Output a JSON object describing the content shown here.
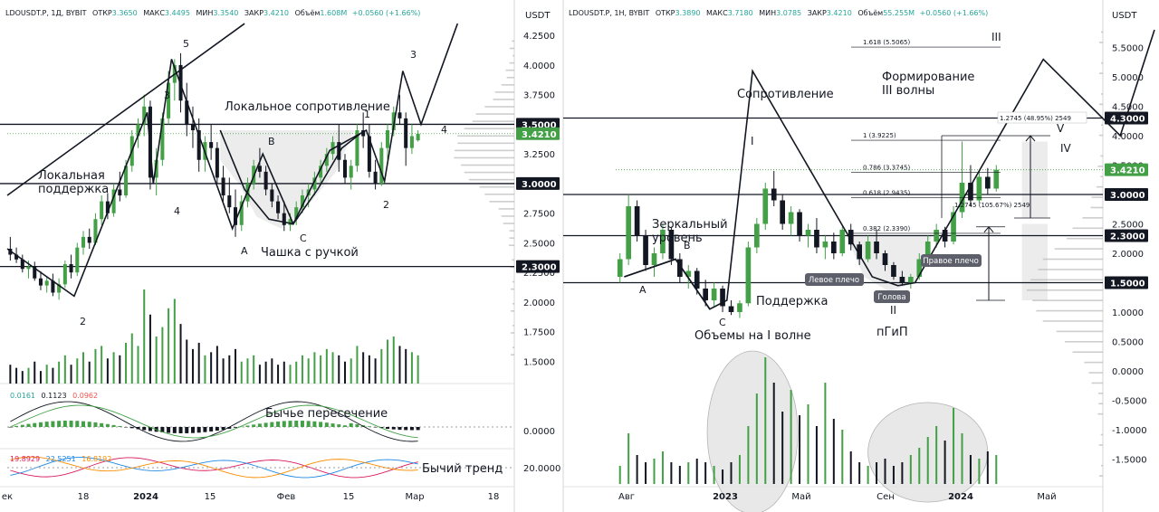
{
  "chart_data": [
    {
      "type": "candlestick",
      "symbol": "LDOUSDT.P, 1Д, BYBIT",
      "ohlc": {
        "o_label": "ОТКР",
        "o": "3.3650",
        "h_label": "МАКС",
        "h": "3.4495",
        "l_label": "МИН",
        "l": "3.3540",
        "c_label": "ЗАКР",
        "c": "3.4210",
        "vol_label": "Объём",
        "vol": "1.608M",
        "change": "+0.0560 (+1.66%)"
      },
      "currency": "USDT",
      "price_ticks": [
        "4.2500",
        "4.0000",
        "3.7500",
        "3.2500",
        "2.7500",
        "2.5000",
        "2.2500",
        "2.0000",
        "1.7500",
        "1.5000"
      ],
      "price_labels": [
        {
          "label": "3.5000",
          "value": 3.5,
          "style": "dark"
        },
        {
          "label": "3.4210",
          "value": 3.421,
          "style": "green"
        },
        {
          "label": "3.0000",
          "value": 3.0,
          "style": "dark"
        },
        {
          "label": "2.3000",
          "value": 2.3,
          "style": "dark"
        }
      ],
      "ylim": [
        1.45,
        4.32
      ],
      "x_ticks": [
        "ек",
        "18",
        "2024",
        "15",
        "Фев",
        "15",
        "Мар",
        "18"
      ],
      "horizontal_levels": [
        3.5,
        3.0,
        2.3
      ],
      "candles": [
        [
          2.45,
          2.55,
          2.35,
          2.4
        ],
        [
          2.4,
          2.46,
          2.33,
          2.36
        ],
        [
          2.36,
          2.4,
          2.25,
          2.28
        ],
        [
          2.28,
          2.35,
          2.2,
          2.3
        ],
        [
          2.3,
          2.34,
          2.18,
          2.2
        ],
        [
          2.2,
          2.26,
          2.1,
          2.14
        ],
        [
          2.14,
          2.22,
          2.08,
          2.18
        ],
        [
          2.18,
          2.24,
          2.05,
          2.08
        ],
        [
          2.08,
          2.2,
          2.02,
          2.15
        ],
        [
          2.15,
          2.35,
          2.12,
          2.32
        ],
        [
          2.32,
          2.4,
          2.2,
          2.25
        ],
        [
          2.25,
          2.5,
          2.22,
          2.46
        ],
        [
          2.46,
          2.6,
          2.4,
          2.55
        ],
        [
          2.55,
          2.62,
          2.45,
          2.5
        ],
        [
          2.5,
          2.75,
          2.48,
          2.7
        ],
        [
          2.7,
          2.9,
          2.65,
          2.85
        ],
        [
          2.85,
          2.92,
          2.7,
          2.75
        ],
        [
          2.75,
          3.0,
          2.72,
          2.95
        ],
        [
          2.95,
          3.1,
          2.85,
          2.9
        ],
        [
          2.9,
          3.2,
          2.88,
          3.15
        ],
        [
          3.15,
          3.45,
          3.1,
          3.4
        ],
        [
          3.4,
          3.55,
          3.3,
          3.5
        ],
        [
          3.5,
          3.75,
          3.4,
          3.65
        ],
        [
          3.65,
          3.7,
          2.95,
          3.05
        ],
        [
          3.05,
          3.3,
          2.9,
          3.2
        ],
        [
          3.2,
          3.6,
          3.15,
          3.55
        ],
        [
          3.55,
          3.95,
          3.5,
          3.85
        ],
        [
          3.85,
          4.05,
          3.7,
          4.0
        ],
        [
          4.0,
          4.1,
          3.6,
          3.7
        ],
        [
          3.7,
          3.85,
          3.4,
          3.5
        ],
        [
          3.5,
          3.65,
          3.3,
          3.45
        ],
        [
          3.45,
          3.55,
          3.1,
          3.2
        ],
        [
          3.2,
          3.4,
          3.1,
          3.35
        ],
        [
          3.35,
          3.5,
          3.2,
          3.3
        ],
        [
          3.3,
          3.35,
          3.0,
          3.05
        ],
        [
          3.05,
          3.15,
          2.85,
          2.9
        ],
        [
          2.9,
          3.05,
          2.75,
          2.8
        ],
        [
          2.8,
          2.95,
          2.55,
          2.65
        ],
        [
          2.65,
          2.9,
          2.6,
          2.85
        ],
        [
          2.85,
          3.05,
          2.8,
          3.0
        ],
        [
          3.0,
          3.2,
          2.95,
          3.15
        ],
        [
          3.15,
          3.3,
          3.05,
          3.1
        ],
        [
          3.1,
          3.15,
          2.9,
          2.95
        ],
        [
          2.95,
          3.0,
          2.8,
          2.85
        ],
        [
          2.85,
          2.9,
          2.7,
          2.75
        ],
        [
          2.75,
          2.85,
          2.6,
          2.65
        ],
        [
          2.65,
          2.75,
          2.6,
          2.7
        ],
        [
          2.7,
          2.85,
          2.65,
          2.8
        ],
        [
          2.8,
          2.95,
          2.75,
          2.9
        ],
        [
          2.9,
          3.0,
          2.8,
          2.95
        ],
        [
          2.95,
          3.1,
          2.9,
          3.05
        ],
        [
          3.05,
          3.2,
          3.0,
          3.15
        ],
        [
          3.15,
          3.3,
          3.1,
          3.25
        ],
        [
          3.25,
          3.4,
          3.2,
          3.35
        ],
        [
          3.35,
          3.5,
          3.1,
          3.2
        ],
        [
          3.2,
          3.25,
          3.0,
          3.05
        ],
        [
          3.05,
          3.2,
          2.95,
          3.15
        ],
        [
          3.15,
          3.5,
          3.1,
          3.45
        ],
        [
          3.45,
          3.6,
          3.3,
          3.4
        ],
        [
          3.4,
          3.5,
          3.05,
          3.1
        ],
        [
          3.1,
          3.2,
          2.95,
          3.0
        ],
        [
          3.0,
          3.35,
          2.98,
          3.3
        ],
        [
          3.3,
          3.5,
          3.2,
          3.45
        ],
        [
          3.45,
          3.65,
          3.4,
          3.6
        ],
        [
          3.6,
          3.75,
          3.5,
          3.55
        ],
        [
          3.55,
          3.6,
          3.15,
          3.3
        ],
        [
          3.3,
          3.5,
          3.25,
          3.4
        ],
        [
          3.365,
          3.4495,
          3.354,
          3.421
        ]
      ],
      "volumes": [
        0.6,
        0.5,
        0.4,
        0.5,
        0.7,
        0.4,
        0.6,
        0.5,
        0.7,
        0.9,
        0.6,
        0.8,
        1.0,
        0.7,
        1.1,
        1.2,
        0.8,
        1.0,
        0.9,
        1.3,
        1.6,
        1.2,
        3.0,
        2.2,
        1.5,
        1.8,
        2.4,
        2.7,
        1.9,
        1.4,
        1.1,
        1.3,
        0.9,
        1.0,
        1.2,
        0.8,
        0.9,
        1.1,
        0.7,
        0.8,
        0.9,
        0.6,
        0.7,
        0.8,
        0.6,
        0.7,
        0.6,
        0.7,
        0.9,
        0.8,
        1.0,
        0.9,
        1.1,
        1.0,
        0.9,
        0.7,
        0.8,
        1.2,
        1.0,
        0.9,
        0.8,
        1.1,
        1.4,
        1.5,
        1.2,
        1.1,
        1.0,
        0.9
      ],
      "macd": {
        "values_label": [
          "0.0161",
          "0.1123",
          "0.0962"
        ],
        "axis_label": "0.0000",
        "annotation": "Бычье пересечение"
      },
      "dmi": {
        "values_label": [
          "19.8929",
          "22.5251",
          "16.8192"
        ],
        "axis_label": "20.0000",
        "annotation": "Бычий тренд"
      },
      "annotations": {
        "resistance": "Локальное сопротивление",
        "support_line1": "Локальная",
        "support_line2": "поддержка",
        "cup": "Чашка с ручкой",
        "A": "A",
        "B": "B",
        "C": "C",
        "w1": "1",
        "w2": "2",
        "w3": "3",
        "w4": "4",
        "w5": "5",
        "w2a": "2",
        "w3a": "3",
        "w4a": "4",
        "w1b": "1",
        "w2b": "2"
      }
    },
    {
      "type": "candlestick",
      "symbol": "LDOUSDT.P, 1Н, BYBIT",
      "ohlc": {
        "o_label": "ОТКР",
        "o": "3.3890",
        "h_label": "МАКС",
        "h": "3.7180",
        "l_label": "МИН",
        "l": "3.0785",
        "c_label": "ЗАКР",
        "c": "3.4210",
        "vol_label": "Объём",
        "vol": "55.255M",
        "change": "+0.0560 (+1.66%)"
      },
      "currency": "USDT",
      "price_ticks": [
        "5.5000",
        "5.0000",
        "4.5000",
        "4.0000",
        "3.5000",
        "2.5000",
        "2.0000",
        "1.0000",
        "0.5000",
        "0.0000",
        "-0.5000",
        "-1.0000",
        "-1.5000"
      ],
      "price_labels": [
        {
          "label": "4.3000",
          "value": 4.3,
          "style": "dark"
        },
        {
          "label": "3.4210",
          "value": 3.421,
          "style": "green"
        },
        {
          "label": "3.0000",
          "value": 3.0,
          "style": "dark"
        },
        {
          "label": "2.3000",
          "value": 2.3,
          "style": "dark"
        },
        {
          "label": "1.5000",
          "value": 1.5,
          "style": "dark"
        }
      ],
      "ylim": [
        -2.0,
        6.0
      ],
      "x_ticks": [
        "Авг",
        "2023",
        "Май",
        "Сен",
        "2024",
        "Май"
      ],
      "horizontal_levels": [
        4.3,
        3.0,
        2.3,
        1.5
      ],
      "fib_levels": [
        {
          "label": "1.618 (5.5065)",
          "value": 5.5065
        },
        {
          "label": "1 (3.9225)",
          "value": 3.9225
        },
        {
          "label": "0.786 (3.3745)",
          "value": 3.3745
        },
        {
          "label": "0.618 (2.9435)",
          "value": 2.9435
        },
        {
          "label": "0.382 (2.3390)",
          "value": 2.339
        }
      ],
      "measures": [
        "1.2745 (48.95%) 2549",
        "1.2745 (105.67%) 2549"
      ],
      "candles": [
        [
          1.6,
          2.0,
          1.5,
          1.9
        ],
        [
          1.9,
          3.0,
          1.8,
          2.8
        ],
        [
          2.8,
          2.9,
          2.2,
          2.3
        ],
        [
          2.3,
          2.4,
          1.7,
          1.8
        ],
        [
          1.8,
          2.1,
          1.6,
          2.0
        ],
        [
          2.0,
          2.5,
          1.9,
          2.4
        ],
        [
          2.4,
          2.45,
          1.8,
          1.9
        ],
        [
          1.9,
          2.0,
          1.5,
          1.6
        ],
        [
          1.6,
          1.8,
          1.4,
          1.7
        ],
        [
          1.7,
          1.75,
          1.3,
          1.4
        ],
        [
          1.4,
          1.55,
          1.1,
          1.2
        ],
        [
          1.2,
          1.5,
          1.1,
          1.4
        ],
        [
          1.4,
          1.45,
          1.0,
          1.1
        ],
        [
          1.1,
          1.2,
          0.95,
          1.0
        ],
        [
          1.0,
          1.2,
          0.9,
          1.15
        ],
        [
          1.15,
          2.2,
          1.1,
          2.1
        ],
        [
          2.1,
          2.6,
          2.0,
          2.5
        ],
        [
          2.5,
          3.2,
          2.4,
          3.1
        ],
        [
          3.1,
          3.4,
          2.8,
          2.9
        ],
        [
          2.9,
          3.0,
          2.4,
          2.5
        ],
        [
          2.5,
          2.8,
          2.3,
          2.7
        ],
        [
          2.7,
          2.75,
          2.2,
          2.3
        ],
        [
          2.3,
          2.5,
          2.1,
          2.4
        ],
        [
          2.4,
          2.6,
          2.0,
          2.1
        ],
        [
          2.1,
          2.3,
          1.9,
          2.2
        ],
        [
          2.2,
          2.35,
          1.9,
          2.0
        ],
        [
          2.0,
          2.45,
          1.95,
          2.4
        ],
        [
          2.4,
          2.5,
          2.05,
          2.15
        ],
        [
          2.15,
          2.2,
          1.8,
          1.9
        ],
        [
          1.9,
          2.3,
          1.85,
          2.2
        ],
        [
          2.2,
          2.4,
          1.9,
          2.0
        ],
        [
          2.0,
          2.05,
          1.7,
          1.8
        ],
        [
          1.8,
          1.85,
          1.55,
          1.6
        ],
        [
          1.6,
          1.7,
          1.45,
          1.5
        ],
        [
          1.5,
          1.65,
          1.4,
          1.6
        ],
        [
          1.6,
          2.0,
          1.55,
          1.9
        ],
        [
          1.9,
          2.3,
          1.85,
          2.2
        ],
        [
          2.2,
          2.5,
          2.1,
          2.4
        ],
        [
          2.4,
          2.45,
          2.1,
          2.2
        ],
        [
          2.2,
          2.8,
          2.15,
          2.7
        ],
        [
          2.7,
          3.9,
          2.6,
          3.2
        ],
        [
          3.2,
          3.5,
          2.8,
          2.9
        ],
        [
          2.9,
          3.4,
          2.85,
          3.3
        ],
        [
          3.3,
          3.45,
          3.0,
          3.1
        ],
        [
          3.1,
          3.5,
          3.05,
          3.42
        ]
      ],
      "volumes": [
        0.5,
        1.4,
        0.8,
        0.6,
        0.7,
        0.9,
        0.6,
        0.5,
        0.6,
        0.7,
        0.6,
        0.5,
        0.4,
        0.6,
        0.8,
        1.6,
        2.5,
        3.5,
        2.8,
        2.0,
        2.6,
        1.9,
        2.2,
        1.6,
        2.8,
        1.8,
        1.5,
        0.9,
        0.6,
        0.5,
        0.6,
        0.7,
        0.5,
        0.6,
        0.8,
        1.0,
        1.3,
        1.6,
        1.2,
        2.1,
        1.4,
        0.8,
        0.7,
        0.9,
        0.8
      ],
      "annotations": {
        "resistance": "Сопротивление",
        "wave3_line1": "Формирование",
        "wave3_line2": "III волны",
        "mirror_line1": "Зеркальный",
        "mirror_line2": "уровень",
        "support": "Поддержка",
        "volumes": "Объемы на I волне",
        "hs": "пГиП",
        "left_shoulder": "Левое плечо",
        "head": "Голова",
        "right_shoulder": "Правое плечо",
        "A": "A",
        "B": "B",
        "C": "C",
        "I": "I",
        "II": "II",
        "III": "III",
        "IV": "IV",
        "V": "V"
      }
    }
  ]
}
